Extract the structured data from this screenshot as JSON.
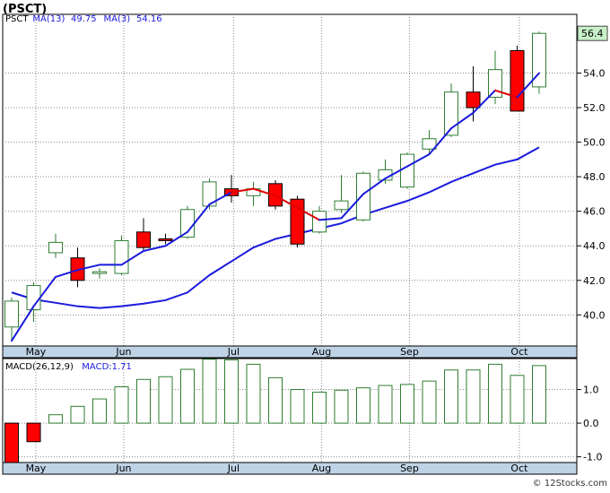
{
  "ticker_label": "(PSCT)",
  "watermark": "© 12Stocks.com",
  "colors": {
    "up_candle": "#2e7d32",
    "down_candle": "#ff0000",
    "ma13": "#1a1adc",
    "ma3_blue": "#1a1adc",
    "ma3_red": "#e00000",
    "axis_band": "#bfd3e6",
    "price_tag_bg": "#c8f0c8",
    "label_blue": "#1a1adc"
  },
  "chart_data": [
    {
      "type": "candlestick",
      "legend": [
        {
          "text": "PSCT",
          "color": "#000000"
        },
        {
          "text": "MA(13)",
          "color": "#1a1adc"
        },
        {
          "text": "49.75",
          "color": "#1a1adc"
        },
        {
          "text": "MA(3)",
          "color": "#1a1adc"
        },
        {
          "text": "54.16",
          "color": "#1a1adc"
        }
      ],
      "last_price_tag": "56.4",
      "y_ticks": [
        40,
        42,
        44,
        46,
        48,
        50,
        52,
        54
      ],
      "y_tick_labels": [
        "40.0",
        "42.0",
        "44.0",
        "46.0",
        "48.0",
        "50.0",
        "52.0",
        "54.0"
      ],
      "ylim": [
        38.2,
        57.4
      ],
      "x_ticks": [
        {
          "label": "May",
          "index": 1.1
        },
        {
          "label": "Jun",
          "index": 5.1
        },
        {
          "label": "Jul",
          "index": 10.1
        },
        {
          "label": "Aug",
          "index": 14.1
        },
        {
          "label": "Sep",
          "index": 18.1
        },
        {
          "label": "Oct",
          "index": 23.1
        }
      ],
      "candles": [
        {
          "o": 39.3,
          "h": 41.0,
          "l": 38.5,
          "c": 40.8
        },
        {
          "o": 40.3,
          "h": 41.9,
          "l": 39.6,
          "c": 41.7
        },
        {
          "o": 43.6,
          "h": 44.7,
          "l": 43.3,
          "c": 44.2
        },
        {
          "o": 43.3,
          "h": 43.9,
          "l": 41.6,
          "c": 42.0
        },
        {
          "o": 42.4,
          "h": 42.7,
          "l": 42.1,
          "c": 42.5
        },
        {
          "o": 42.4,
          "h": 44.6,
          "l": 42.3,
          "c": 44.3
        },
        {
          "o": 44.8,
          "h": 45.6,
          "l": 43.7,
          "c": 43.9
        },
        {
          "o": 44.4,
          "h": 44.7,
          "l": 44.1,
          "c": 44.3
        },
        {
          "o": 44.5,
          "h": 46.3,
          "l": 44.4,
          "c": 46.1
        },
        {
          "o": 46.3,
          "h": 47.9,
          "l": 46.1,
          "c": 47.7
        },
        {
          "o": 47.3,
          "h": 48.1,
          "l": 46.5,
          "c": 46.9
        },
        {
          "o": 46.9,
          "h": 47.7,
          "l": 46.3,
          "c": 47.3
        },
        {
          "o": 47.6,
          "h": 47.8,
          "l": 46.1,
          "c": 46.3
        },
        {
          "o": 46.7,
          "h": 46.9,
          "l": 43.9,
          "c": 44.1
        },
        {
          "o": 44.8,
          "h": 46.3,
          "l": 44.7,
          "c": 46.0
        },
        {
          "o": 46.1,
          "h": 48.1,
          "l": 45.9,
          "c": 46.6
        },
        {
          "o": 45.5,
          "h": 48.3,
          "l": 45.4,
          "c": 48.2
        },
        {
          "o": 47.8,
          "h": 49.0,
          "l": 47.6,
          "c": 48.4
        },
        {
          "o": 47.4,
          "h": 49.4,
          "l": 47.3,
          "c": 49.3
        },
        {
          "o": 49.6,
          "h": 50.7,
          "l": 49.3,
          "c": 50.2
        },
        {
          "o": 50.4,
          "h": 53.4,
          "l": 50.3,
          "c": 52.9
        },
        {
          "o": 52.9,
          "h": 54.4,
          "l": 51.2,
          "c": 52.0
        },
        {
          "o": 52.6,
          "h": 55.3,
          "l": 52.2,
          "c": 54.2
        },
        {
          "o": 55.3,
          "h": 55.6,
          "l": 51.8,
          "c": 51.8
        },
        {
          "o": 53.2,
          "h": 56.4,
          "l": 52.8,
          "c": 56.3
        }
      ],
      "ma13_start_index": 0,
      "ma13": [
        41.3,
        40.9,
        40.7,
        40.5,
        40.4,
        40.5,
        40.65,
        40.85,
        41.3,
        42.3,
        43.1,
        43.9,
        44.4,
        44.7,
        45.0,
        45.3,
        45.8,
        46.2,
        46.6,
        47.1,
        47.7,
        48.2,
        48.7,
        49.0,
        49.7
      ],
      "ma3_start_index": 0,
      "ma3": [
        38.5,
        40.5,
        42.2,
        42.6,
        42.9,
        42.9,
        43.7,
        44.0,
        44.8,
        46.4,
        47.1,
        47.3,
        46.9,
        46.2,
        45.5,
        45.6,
        47.0,
        47.9,
        48.6,
        49.3,
        50.8,
        51.7,
        53.0,
        52.6,
        54.0
      ],
      "ma3_segment_colors": [
        "blue",
        "blue",
        "blue",
        "blue",
        "blue",
        "blue",
        "blue",
        "blue",
        "blue",
        "blue",
        "red",
        "red",
        "red",
        "red",
        "blue",
        "blue",
        "blue",
        "blue",
        "blue",
        "blue",
        "blue",
        "blue",
        "red",
        "blue"
      ]
    },
    {
      "type": "bar",
      "legend": [
        {
          "text": "MACD(26,12,9)",
          "color": "#000000"
        },
        {
          "text": "MACD:1.71",
          "color": "#1a1adc"
        }
      ],
      "y_ticks": [
        1.0,
        0.0,
        -1.0
      ],
      "y_tick_labels": [
        "1.0",
        "0.0",
        "-1.0"
      ],
      "ylim": [
        -1.17,
        1.92
      ],
      "values": [
        -1.2,
        -0.55,
        0.25,
        0.5,
        0.72,
        1.08,
        1.3,
        1.38,
        1.6,
        1.9,
        1.88,
        1.75,
        1.35,
        1.0,
        0.92,
        0.98,
        1.05,
        1.12,
        1.15,
        1.25,
        1.58,
        1.58,
        1.75,
        1.42,
        1.71
      ]
    }
  ]
}
